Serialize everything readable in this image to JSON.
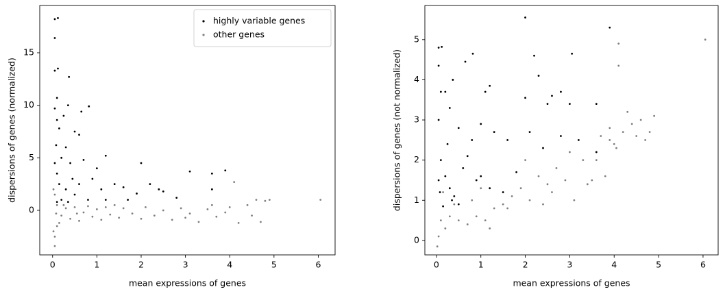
{
  "chart_data": [
    {
      "type": "scatter",
      "xlabel": "mean expressions of genes",
      "ylabel": "dispersions of genes (normalized)",
      "xlim": [
        -0.29,
        6.38
      ],
      "ylim": [
        -4.24,
        19.5
      ],
      "xticks": [
        0,
        1,
        2,
        3,
        4,
        5,
        6
      ],
      "yticks": [
        0,
        5,
        10,
        15
      ],
      "legend": "upper right",
      "series": [
        {
          "name": "highly variable genes",
          "color": "#000000",
          "x": [
            0.05,
            0.12,
            0.05,
            0.05,
            0.12,
            0.37,
            0.1,
            0.05,
            0.35,
            0.82,
            0.65,
            0.1,
            0.25,
            0.15,
            0.5,
            0.08,
            0.3,
            0.6,
            1.2,
            2.0,
            3.1,
            3.6,
            3.9,
            0.2,
            0.4,
            0.7,
            1.0,
            0.9,
            1.4,
            1.6,
            1.9,
            2.2,
            2.5,
            2.8,
            3.6,
            0.1,
            0.15,
            0.3,
            0.5,
            0.8,
            0.2,
            0.1,
            1.2,
            0.45,
            0.05,
            1.1,
            2.4,
            0.6,
            1.7,
            0.35
          ],
          "values": [
            18.2,
            18.3,
            16.4,
            13.3,
            13.5,
            12.7,
            10.7,
            9.7,
            10.0,
            9.9,
            9.4,
            8.6,
            9.0,
            7.8,
            7.5,
            6.2,
            6.0,
            7.2,
            5.2,
            4.5,
            3.7,
            3.5,
            3.8,
            5.0,
            4.5,
            4.8,
            4.0,
            3.0,
            2.5,
            2.2,
            1.6,
            2.5,
            1.8,
            1.2,
            2.0,
            3.5,
            2.5,
            2.0,
            1.5,
            1.0,
            1.0,
            0.8,
            1.0,
            3.0,
            4.5,
            2.0,
            2.0,
            2.5,
            1.0,
            0.8
          ]
        },
        {
          "name": "other genes",
          "color": "#808080",
          "x": [
            0.05,
            0.05,
            0.1,
            0.1,
            0.2,
            0.3,
            0.4,
            0.5,
            0.6,
            0.7,
            0.8,
            0.9,
            1.0,
            1.1,
            1.2,
            1.3,
            1.5,
            1.6,
            1.8,
            2.0,
            2.1,
            2.3,
            2.5,
            2.7,
            2.9,
            3.1,
            3.3,
            3.5,
            3.7,
            3.9,
            4.0,
            4.1,
            4.2,
            4.4,
            4.5,
            4.6,
            4.7,
            4.8,
            4.9,
            6.05,
            0.02,
            0.02,
            0.05,
            0.15,
            0.25,
            3.0,
            3.6,
            1.4,
            0.55,
            0.08
          ],
          "values": [
            -3.4,
            -2.5,
            -1.5,
            0.5,
            -0.5,
            0.2,
            -0.8,
            0.3,
            -1.0,
            -0.2,
            0.4,
            -0.6,
            0.1,
            -0.9,
            0.3,
            -0.4,
            -0.7,
            0.2,
            -0.3,
            -0.8,
            0.3,
            -0.5,
            0.0,
            -0.9,
            0.2,
            -0.3,
            -1.1,
            0.1,
            -0.6,
            -0.2,
            0.3,
            2.7,
            -1.2,
            0.5,
            -0.5,
            1.0,
            -1.1,
            0.9,
            1.0,
            1.0,
            2.0,
            -2.0,
            1.5,
            -1.2,
            0.5,
            -0.7,
            0.5,
            0.5,
            -0.3,
            -0.3
          ]
        }
      ]
    },
    {
      "type": "scatter",
      "xlabel": "mean expressions of genes",
      "ylabel": "dispersions of genes (not normalized)",
      "xlim": [
        -0.26,
        6.34
      ],
      "ylim": [
        -0.36,
        5.85
      ],
      "xticks": [
        0,
        1,
        2,
        3,
        4,
        5,
        6
      ],
      "yticks": [
        0,
        1,
        2,
        3,
        4,
        5
      ],
      "series": [
        {
          "color": "#000000",
          "x": [
            0.05,
            0.12,
            0.05,
            0.37,
            0.65,
            0.82,
            2.0,
            2.2,
            3.05,
            3.9,
            1.2,
            1.1,
            2.3,
            0.1,
            0.2,
            0.3,
            2.0,
            2.5,
            2.6,
            2.8,
            3.0,
            3.6,
            0.05,
            0.5,
            0.8,
            1.0,
            1.3,
            1.6,
            2.1,
            2.4,
            2.8,
            3.2,
            3.6,
            0.1,
            0.2,
            0.3,
            0.4,
            0.5,
            0.15,
            0.08,
            0.6,
            0.9,
            1.2,
            1.5,
            1.8,
            0.25,
            0.7,
            1.0,
            0.05,
            0.35
          ],
          "values": [
            4.8,
            4.82,
            4.35,
            4.0,
            4.45,
            4.65,
            5.55,
            4.6,
            4.65,
            5.3,
            3.85,
            3.7,
            4.1,
            3.7,
            3.7,
            3.3,
            3.55,
            3.4,
            3.6,
            3.7,
            3.4,
            3.4,
            3.0,
            2.8,
            2.5,
            2.9,
            2.7,
            2.5,
            2.7,
            2.3,
            2.6,
            2.5,
            2.2,
            2.0,
            1.6,
            1.3,
            1.1,
            0.9,
            0.85,
            1.2,
            1.8,
            1.5,
            1.3,
            1.2,
            1.7,
            2.4,
            2.1,
            1.6,
            1.5,
            1.0
          ]
        },
        {
          "color": "#808080",
          "x": [
            0.02,
            0.05,
            0.1,
            0.2,
            0.3,
            0.5,
            0.7,
            0.9,
            1.1,
            1.3,
            1.5,
            1.7,
            1.9,
            2.1,
            2.3,
            2.5,
            2.7,
            2.9,
            3.1,
            3.3,
            3.5,
            3.6,
            3.7,
            3.8,
            3.9,
            4.0,
            4.1,
            4.1,
            4.2,
            4.3,
            4.4,
            4.5,
            4.6,
            4.7,
            4.8,
            4.9,
            6.05,
            3.0,
            2.0,
            1.0,
            0.8,
            1.6,
            2.6,
            3.4,
            0.4,
            0.15,
            1.2,
            3.9,
            4.05,
            2.4
          ],
          "values": [
            -0.15,
            0.1,
            0.5,
            0.3,
            0.6,
            0.5,
            0.4,
            0.6,
            0.5,
            0.8,
            0.9,
            1.1,
            1.3,
            1.0,
            1.6,
            1.4,
            1.8,
            1.5,
            1.0,
            2.0,
            1.5,
            2.0,
            2.6,
            1.6,
            2.5,
            2.4,
            4.35,
            4.9,
            2.7,
            3.2,
            2.9,
            2.6,
            3.0,
            2.5,
            2.7,
            3.1,
            5.0,
            2.2,
            2.0,
            1.3,
            1.0,
            0.8,
            1.2,
            1.4,
            0.9,
            1.2,
            0.3,
            2.8,
            2.3,
            0.9
          ]
        }
      ]
    }
  ]
}
